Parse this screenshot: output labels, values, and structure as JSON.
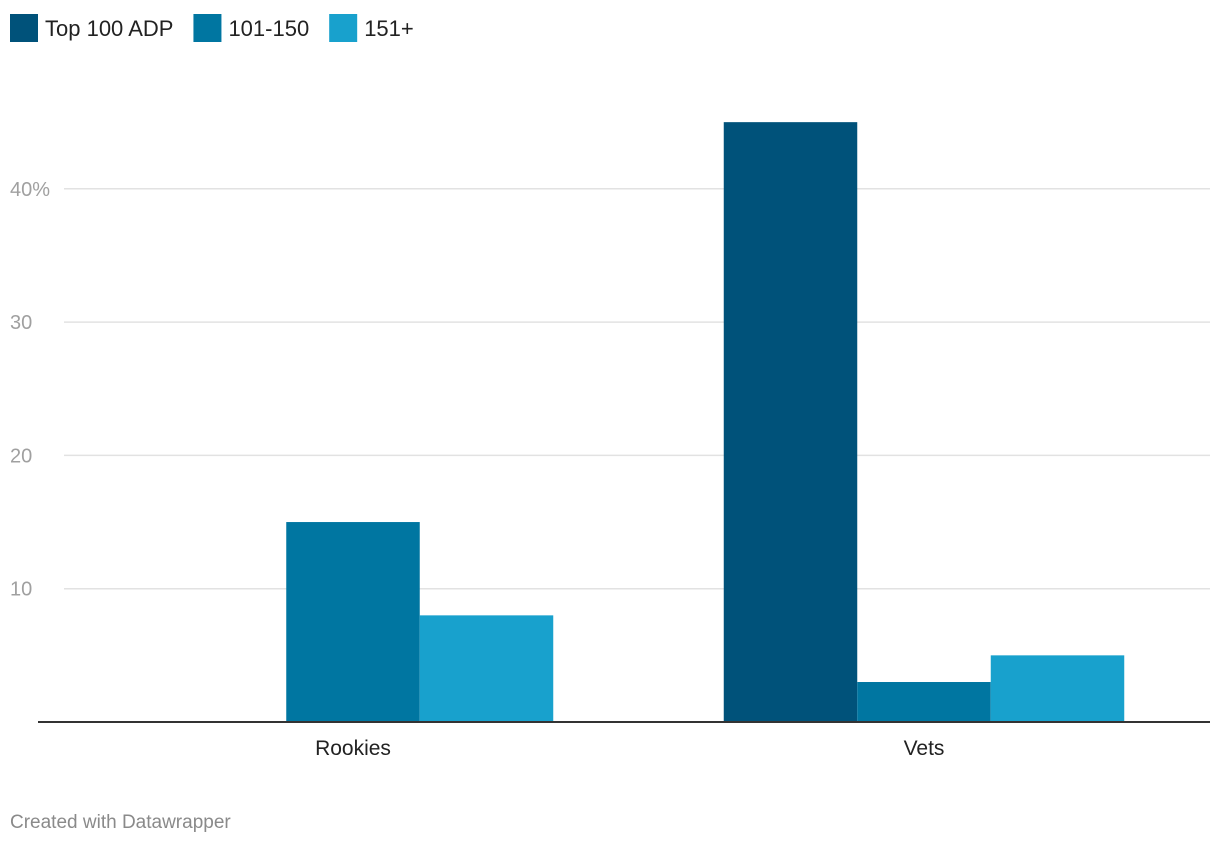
{
  "chart_data": {
    "type": "bar",
    "categories": [
      "Rookies",
      "Vets"
    ],
    "series": [
      {
        "name": "Top 100 ADP",
        "values": [
          0,
          45
        ],
        "color": "#00527a"
      },
      {
        "name": "101-150",
        "values": [
          15,
          3
        ],
        "color": "#0076a1"
      },
      {
        "name": "151+",
        "values": [
          8,
          5
        ],
        "color": "#18a1cd"
      }
    ],
    "yticks": [
      10,
      20,
      30,
      40
    ],
    "ytick_labels": [
      "10",
      "20",
      "30",
      "40%"
    ],
    "ylim": [
      0,
      50
    ],
    "grid": true,
    "legend_placement": "top-left",
    "title": "",
    "xlabel": "",
    "ylabel": ""
  },
  "footer": {
    "credit": "Created with Datawrapper"
  }
}
